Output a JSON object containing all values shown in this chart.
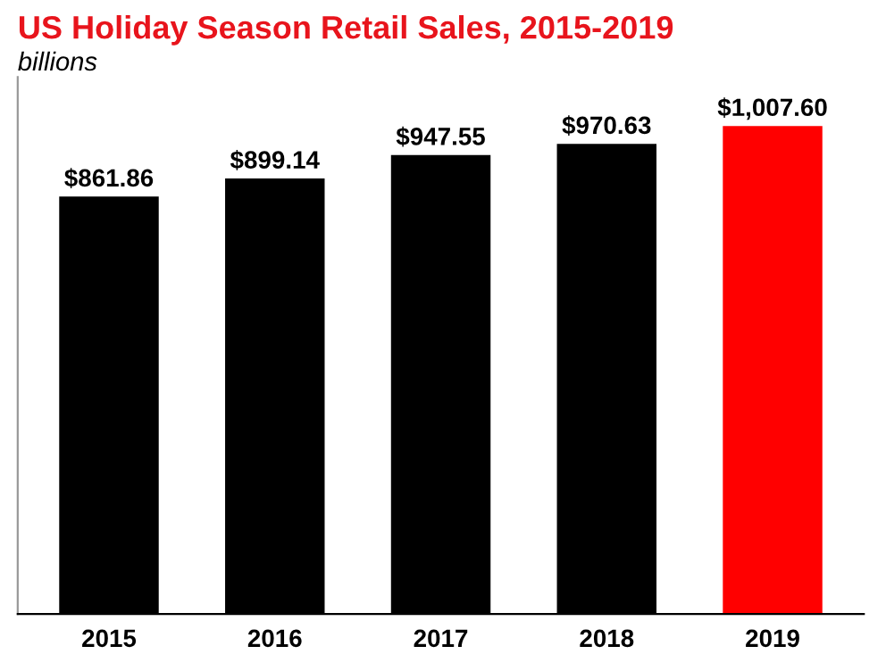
{
  "chart_data": {
    "type": "bar",
    "title": "US Holiday Season Retail Sales, 2015-2019",
    "subtitle": "billions",
    "categories": [
      "2015",
      "2016",
      "2017",
      "2018",
      "2019"
    ],
    "values": [
      861.86,
      899.14,
      947.55,
      970.63,
      1007.6
    ],
    "colors": [
      "#000000",
      "#000000",
      "#000000",
      "#000000",
      "#ff0000"
    ],
    "value_labels": [
      "$861.86",
      "$899.14",
      "$947.55",
      "$970.63",
      "$1,007.60"
    ],
    "grid": false,
    "legend": false
  }
}
